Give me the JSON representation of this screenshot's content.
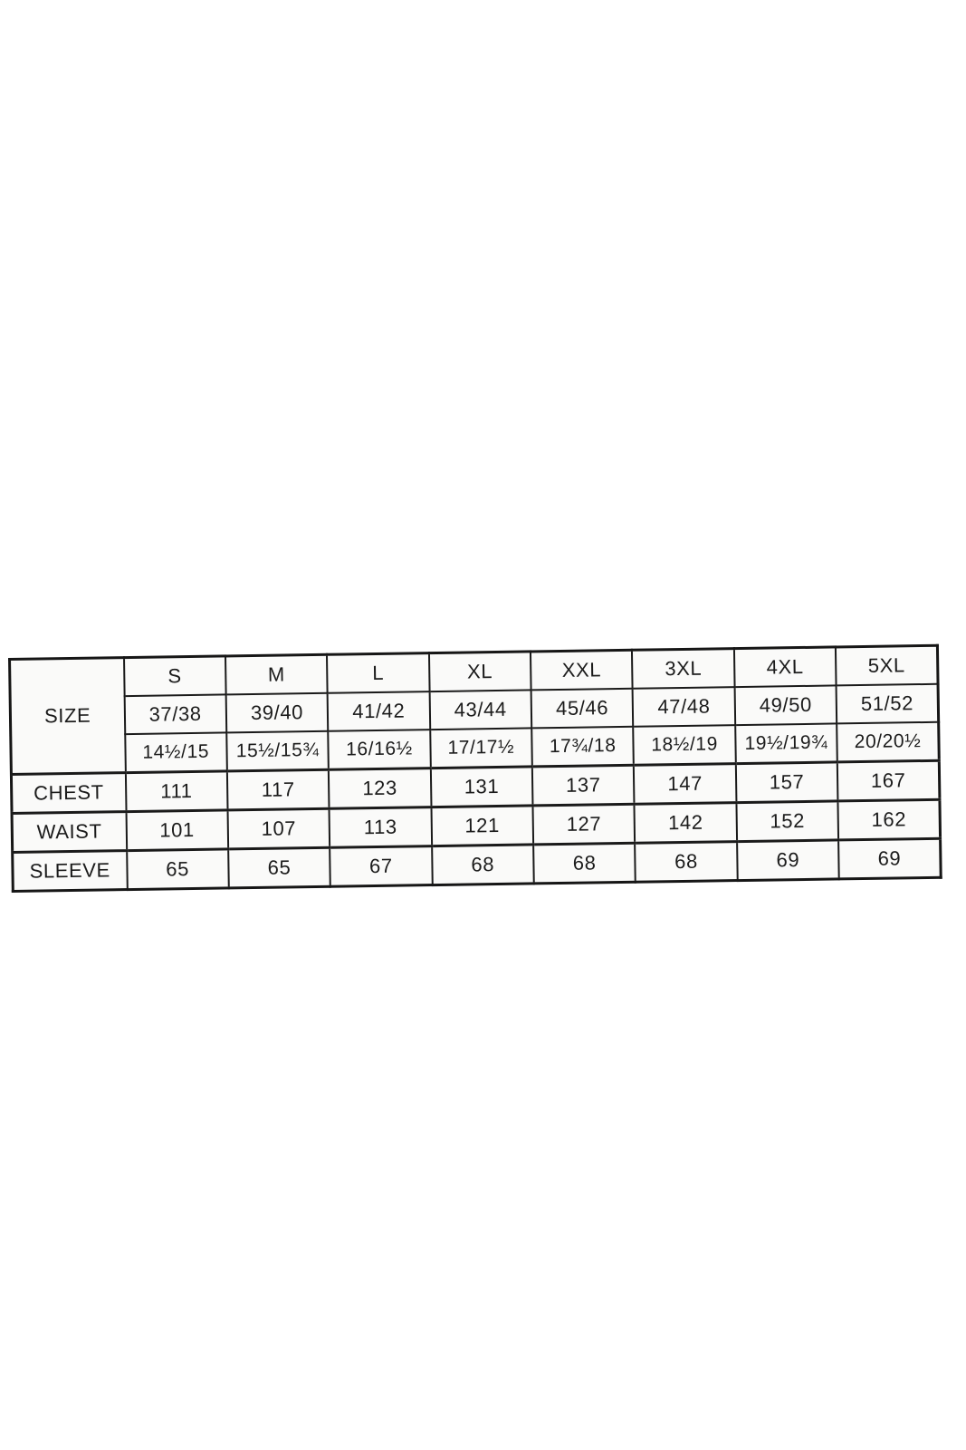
{
  "size_chart": {
    "corner_label": "SIZE",
    "header_sizes": [
      "S",
      "M",
      "L",
      "XL",
      "XXL",
      "3XL",
      "4XL",
      "5XL"
    ],
    "numeric_sizes": [
      "37/38",
      "39/40",
      "41/42",
      "43/44",
      "45/46",
      "47/48",
      "49/50",
      "51/52"
    ],
    "collar_sizes": [
      "14½/15",
      "15½/15¾",
      "16/16½",
      "17/17½",
      "17¾/18",
      "18½/19",
      "19½/19¾",
      "20/20½"
    ],
    "measurements": [
      {
        "label": "CHEST",
        "values": [
          "111",
          "117",
          "123",
          "131",
          "137",
          "147",
          "157",
          "167"
        ]
      },
      {
        "label": "WAIST",
        "values": [
          "101",
          "107",
          "113",
          "121",
          "127",
          "142",
          "152",
          "162"
        ]
      },
      {
        "label": "SLEEVE",
        "values": [
          "65",
          "65",
          "67",
          "68",
          "68",
          "68",
          "69",
          "69"
        ]
      }
    ]
  }
}
